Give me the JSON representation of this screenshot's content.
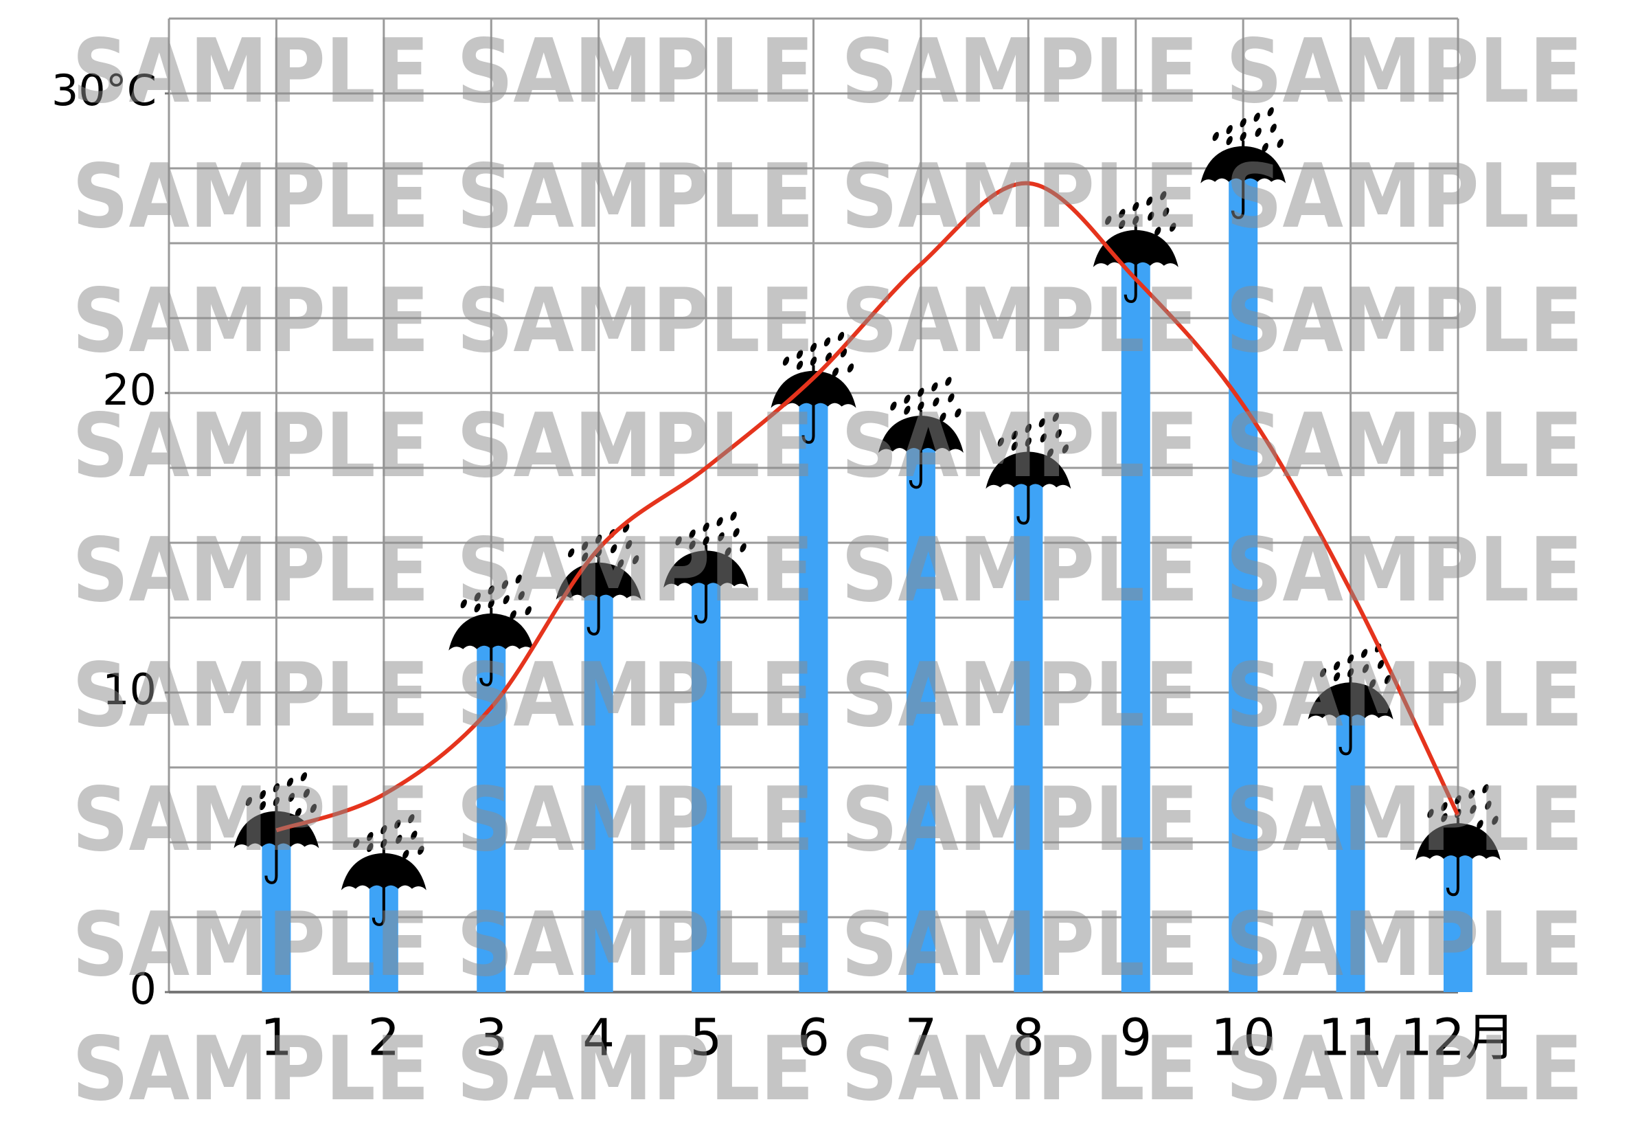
{
  "chart_data": {
    "type": "bar_line",
    "categories": [
      "1",
      "2",
      "3",
      "4",
      "5",
      "6",
      "7",
      "8",
      "9",
      "10",
      "11",
      "12月"
    ],
    "series": [
      {
        "type": "bar",
        "color": "#3ea3f6",
        "values": [
          5.4,
          4.0,
          12.0,
          13.7,
          14.1,
          20.1,
          18.6,
          17.4,
          24.8,
          27.6,
          9.7,
          5.0
        ]
      },
      {
        "type": "line",
        "color": "#e5341d",
        "values": [
          5.4,
          6.6,
          9.5,
          14.8,
          17.5,
          20.5,
          24.3,
          27.0,
          23.8,
          19.6,
          13.4,
          5.9
        ]
      }
    ],
    "ylim": [
      0,
      32.5
    ],
    "yticks": [
      0,
      10,
      20,
      {
        "value": 30,
        "label": "30°C"
      }
    ],
    "ygrid": [
      0,
      2.5,
      5,
      7.5,
      10,
      12.5,
      15,
      17.5,
      20,
      22.5,
      25,
      27.5,
      30,
      32.5
    ],
    "grid": true,
    "watermark": "SAMPLE SAMPLE SAMPLE SAMPLE"
  }
}
